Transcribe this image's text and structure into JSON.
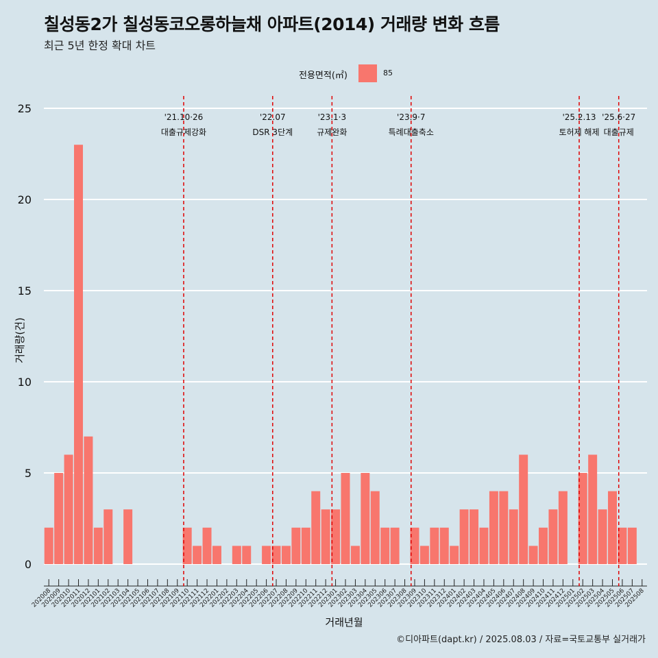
{
  "header": {
    "title": "칠성동2가 칠성동코오롱하늘채 아파트(2014) 거래량 변화 흐름",
    "subtitle": "최근 5년 한정 확대 차트"
  },
  "legend": {
    "title": "전용면적(㎡)",
    "items": [
      {
        "label": "85",
        "color": "#f8766d"
      }
    ]
  },
  "caption": "©디아파트(dapt.kr) / 2025.08.03 / 자료=국토교통부 실거래가",
  "chart_data": {
    "type": "bar",
    "title": "칠성동2가 칠성동코오롱하늘채 아파트(2014) 거래량 변화 흐름",
    "xlabel": "거래년월",
    "ylabel": "거래량(건)",
    "ylim": [
      0,
      25
    ],
    "yticks": [
      0,
      5,
      10,
      15,
      20,
      25
    ],
    "grid": "horizontal",
    "legend_position": "top",
    "bar_color": "#f8766d",
    "categories": [
      "202008",
      "202009",
      "202010",
      "202011",
      "202012",
      "202101",
      "202102",
      "202103",
      "202104",
      "202105",
      "202106",
      "202107",
      "202108",
      "202109",
      "202110",
      "202111",
      "202112",
      "202201",
      "202202",
      "202203",
      "202204",
      "202205",
      "202206",
      "202207",
      "202208",
      "202209",
      "202210",
      "202211",
      "202212",
      "202301",
      "202302",
      "202303",
      "202304",
      "202305",
      "202306",
      "202307",
      "202308",
      "202309",
      "202310",
      "202311",
      "202312",
      "202401",
      "202402",
      "202403",
      "202404",
      "202405",
      "202406",
      "202407",
      "202408",
      "202409",
      "202410",
      "202411",
      "202412",
      "202501",
      "202502",
      "202503",
      "202504",
      "202505",
      "202506",
      "202507",
      "202508"
    ],
    "series": [
      {
        "name": "85",
        "values": [
          2,
          5,
          6,
          23,
          7,
          2,
          3,
          0,
          3,
          0,
          0,
          0,
          0,
          0,
          2,
          1,
          2,
          1,
          0,
          1,
          1,
          0,
          1,
          1,
          1,
          2,
          2,
          4,
          3,
          3,
          5,
          1,
          5,
          4,
          2,
          2,
          0,
          2,
          1,
          2,
          2,
          1,
          3,
          3,
          2,
          4,
          4,
          3,
          6,
          1,
          2,
          3,
          4,
          0,
          5,
          6,
          3,
          4,
          2,
          2,
          0
        ]
      }
    ],
    "annotations": [
      {
        "x": "202110",
        "date": "'21.10·26",
        "text": "대출규제강화"
      },
      {
        "x": "202207",
        "date": "'22.07",
        "text": "DSR 3단계"
      },
      {
        "x": "202301",
        "date": "'23.1·3",
        "text": "규제완화"
      },
      {
        "x": "202309",
        "date": "'23.9·7",
        "text": "특례대출축소"
      },
      {
        "x": "202502",
        "date": "'25.2.13",
        "text": "토허제 해제"
      },
      {
        "x": "202506",
        "date": "'25.6·27",
        "text": "대출규제"
      }
    ]
  }
}
